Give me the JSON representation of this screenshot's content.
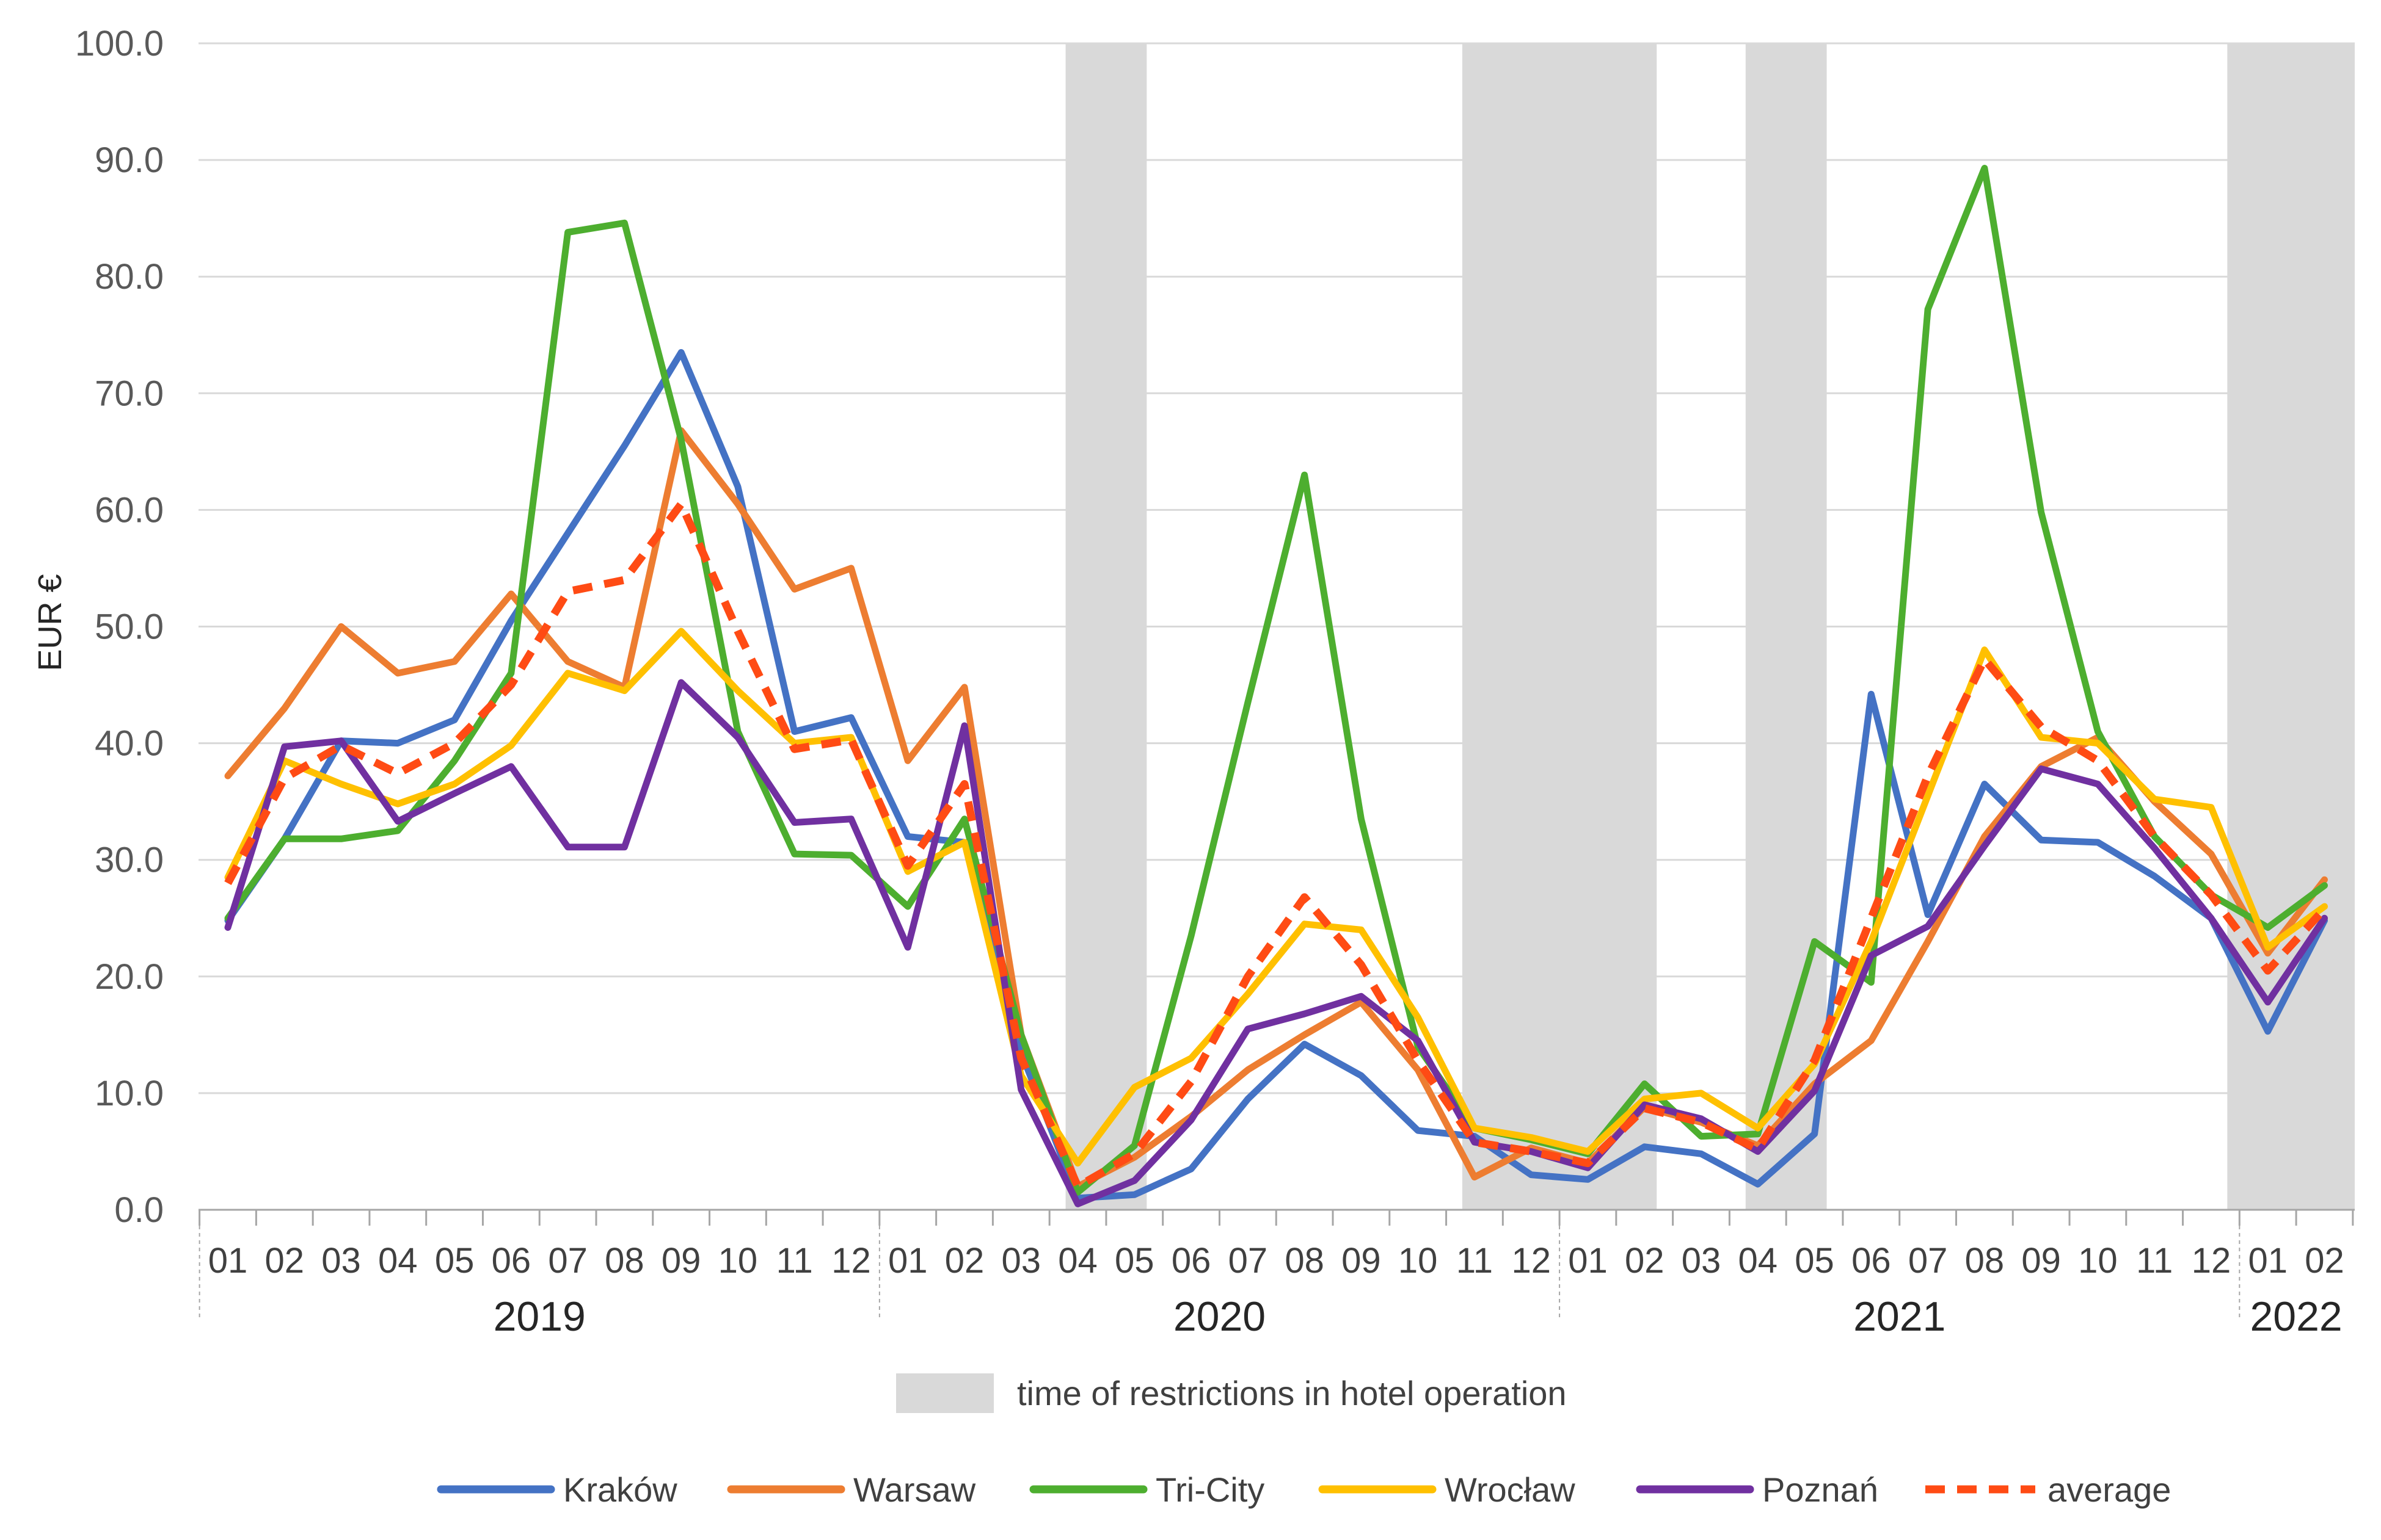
{
  "chart_data": {
    "type": "line",
    "title": "",
    "xlabel": "",
    "ylabel": "EUR €",
    "ylim": [
      0,
      100
    ],
    "yticks": [
      "0.0",
      "10.0",
      "20.0",
      "30.0",
      "40.0",
      "50.0",
      "60.0",
      "70.0",
      "80.0",
      "90.0",
      "100.0"
    ],
    "grid": true,
    "categories": [
      "01",
      "02",
      "03",
      "04",
      "05",
      "06",
      "07",
      "08",
      "09",
      "10",
      "11",
      "12",
      "01",
      "02",
      "03",
      "04",
      "05",
      "06",
      "07",
      "08",
      "09",
      "10",
      "11",
      "12",
      "01",
      "02",
      "03",
      "04",
      "05",
      "06",
      "07",
      "08",
      "09",
      "10",
      "11",
      "12",
      "01",
      "02"
    ],
    "years": [
      {
        "label": "2019",
        "start": 0,
        "end": 11
      },
      {
        "label": "2020",
        "start": 12,
        "end": 23
      },
      {
        "label": "2021",
        "start": 24,
        "end": 35
      },
      {
        "label": "2022",
        "start": 36,
        "end": 37
      }
    ],
    "restriction_periods": [
      [
        15,
        16
      ],
      [
        22,
        25
      ],
      [
        27,
        28
      ],
      [
        35.5,
        37.5
      ]
    ],
    "series": [
      {
        "name": "Kraków",
        "color": "#4472C4",
        "dashed": false,
        "values": [
          24.8,
          31.8,
          40.2,
          40.0,
          42.0,
          50.5,
          58.0,
          65.5,
          73.5,
          62.0,
          41.0,
          42.2,
          32.0,
          31.5,
          13.5,
          1.0,
          1.3,
          3.5,
          9.5,
          14.2,
          11.5,
          6.8,
          6.3,
          3.0,
          2.6,
          5.4,
          4.8,
          2.2,
          6.5,
          44.2,
          25.3,
          36.5,
          31.7,
          31.5,
          28.6,
          25.0,
          15.3,
          24.8
        ]
      },
      {
        "name": "Warsaw",
        "color": "#ED7D31",
        "dashed": false,
        "values": [
          37.2,
          43.0,
          50.0,
          46.0,
          47.0,
          52.8,
          47.0,
          44.8,
          66.8,
          60.5,
          53.2,
          55.0,
          38.5,
          44.8,
          15.0,
          2.0,
          4.5,
          8.0,
          12.0,
          15.0,
          17.8,
          12.0,
          2.8,
          5.3,
          4.0,
          8.8,
          7.5,
          5.5,
          10.8,
          14.5,
          23.0,
          32.0,
          38.0,
          40.5,
          35.0,
          30.5,
          22.0,
          28.3
        ]
      },
      {
        "name": "Tri-City",
        "color": "#4DAE2F",
        "dashed": false,
        "values": [
          25.0,
          31.8,
          31.8,
          32.5,
          38.5,
          46.0,
          83.8,
          84.6,
          66.0,
          41.0,
          30.5,
          30.4,
          26.0,
          33.5,
          15.0,
          1.5,
          5.5,
          23.5,
          43.5,
          63.0,
          33.5,
          14.0,
          7.0,
          6.0,
          4.8,
          10.8,
          6.3,
          6.5,
          23.0,
          19.5,
          77.2,
          89.3,
          59.8,
          41.0,
          32.0,
          27.0,
          24.2,
          27.8
        ]
      },
      {
        "name": "Wrocław",
        "color": "#FFC000",
        "dashed": false,
        "values": [
          28.5,
          38.5,
          36.5,
          34.8,
          36.5,
          39.8,
          46.0,
          44.5,
          49.6,
          44.5,
          40.0,
          40.5,
          29.0,
          31.5,
          11.5,
          4.0,
          10.5,
          13.0,
          18.5,
          24.5,
          24.0,
          16.5,
          7.0,
          6.2,
          5.0,
          9.5,
          10.0,
          7.0,
          12.5,
          23.0,
          35.5,
          48.0,
          40.5,
          40.0,
          35.2,
          34.5,
          22.5,
          26.0
        ]
      },
      {
        "name": "Poznań",
        "color": "#7030A0",
        "dashed": false,
        "values": [
          24.2,
          39.7,
          40.2,
          33.3,
          35.7,
          38.0,
          31.1,
          31.1,
          45.2,
          40.5,
          33.2,
          33.5,
          22.5,
          41.5,
          10.3,
          0.5,
          2.5,
          7.7,
          15.5,
          16.8,
          18.3,
          14.5,
          5.8,
          5.0,
          3.6,
          9.0,
          7.8,
          5.0,
          10.2,
          21.8,
          24.3,
          31.2,
          37.8,
          36.5,
          31.0,
          25.0,
          17.8,
          25.0
        ]
      },
      {
        "name": "average",
        "color": "#FF4B14",
        "dashed": true,
        "values": [
          28.0,
          37.0,
          39.8,
          37.4,
          40.0,
          45.0,
          53.0,
          54.0,
          60.5,
          49.6,
          39.5,
          40.3,
          29.5,
          36.5,
          13.0,
          2.0,
          4.8,
          11.0,
          20.0,
          26.8,
          21.0,
          12.8,
          5.8,
          5.0,
          4.0,
          8.7,
          7.5,
          5.2,
          12.8,
          25.0,
          37.2,
          47.2,
          41.4,
          38.5,
          32.0,
          27.0,
          20.5,
          25.8
        ]
      }
    ],
    "legend": {
      "position": "bottom",
      "restriction_label": "time of restrictions in hotel operation",
      "restriction_color": "#D9D9D9"
    }
  }
}
